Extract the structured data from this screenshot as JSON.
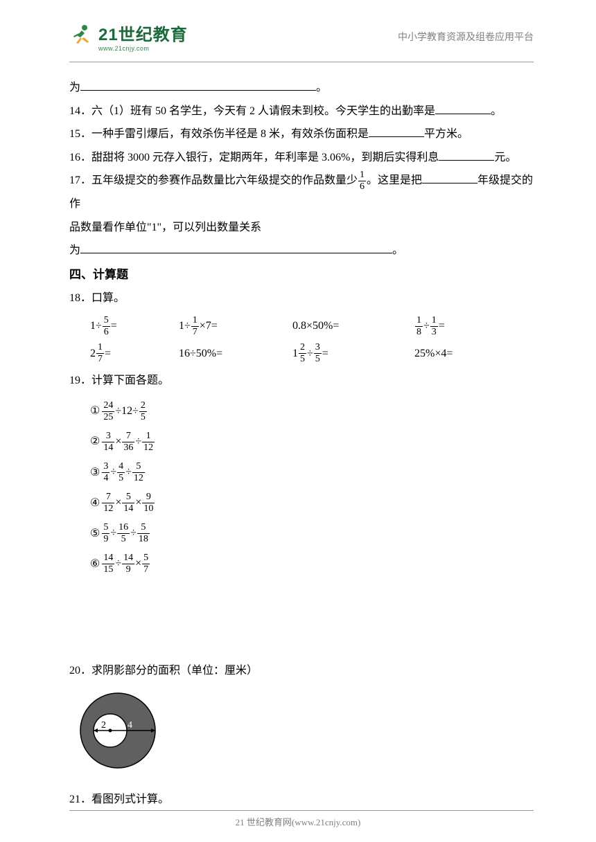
{
  "header": {
    "logo_main": "21世纪教育",
    "logo_sub": "www.21cnjy.com",
    "right_text": "中小学教育资源及组卷应用平台"
  },
  "q_prefix_wei": "为",
  "q_suffix_period": "。",
  "q14": {
    "num": "14．",
    "text_a": "六（1）班有 50 名学生，今天有 2 人请假未到校。今天学生的出勤率是",
    "text_b": "。"
  },
  "q15": {
    "num": "15．",
    "text_a": "一种手雷引爆后，有效杀伤半径是 8 米，有效杀伤面积是",
    "text_b": "平方米。"
  },
  "q16": {
    "num": "16．",
    "text_a": "甜甜将 3000 元存入银行，定期两年，年利率是 3.06%，到期后实得利息",
    "text_b": "元。"
  },
  "q17": {
    "num": "17．",
    "text_a": "五年级提交的参赛作品数量比六年级提交的作品数量少",
    "frac_num": "1",
    "frac_den": "6",
    "text_b": "。这里是把",
    "text_c": "年级提交的作",
    "text_d": "品数量看作单位\"1\"，可以列出数量关系",
    "text_e": "为",
    "text_f": "。"
  },
  "section4": "四、计算题",
  "q18": {
    "num": "18．",
    "title": "口算。",
    "row1": {
      "c1_a": "1÷",
      "c1_num": "5",
      "c1_den": "6",
      "c1_b": "=",
      "c2_a": "1÷",
      "c2_num": "1",
      "c2_den": "7",
      "c2_b": "×7=",
      "c3": "0.8×50%=",
      "c4_num1": "1",
      "c4_den1": "8",
      "c4_op": "÷",
      "c4_num2": "1",
      "c4_den2": "3",
      "c4_eq": "="
    },
    "row2": {
      "c1_a": "2",
      "c1_num": "1",
      "c1_den": "7",
      "c1_b": "=",
      "c2": "16÷50%=",
      "c3_a": "1",
      "c3_num1": "2",
      "c3_den1": "5",
      "c3_op": "÷",
      "c3_num2": "3",
      "c3_den2": "5",
      "c3_eq": "=",
      "c4": "25%×4="
    }
  },
  "q19": {
    "num": "19．",
    "title": "计算下面各题。",
    "items": [
      {
        "circ": "①",
        "n1": "24",
        "d1": "25",
        "op1": "÷12÷",
        "n2": "2",
        "d2": "5"
      },
      {
        "circ": "②",
        "n1": "3",
        "d1": "14",
        "op1": "×",
        "n2": "7",
        "d2": "36",
        "op2": "÷",
        "n3": "1",
        "d3": "12"
      },
      {
        "circ": "③",
        "n1": "3",
        "d1": "4",
        "op1": "÷",
        "n2": "4",
        "d2": "5",
        "op2": "÷",
        "n3": "5",
        "d3": "12"
      },
      {
        "circ": "④",
        "n1": "7",
        "d1": "12",
        "op1": "×",
        "n2": "5",
        "d2": "14",
        "op2": "×",
        "n3": "9",
        "d3": "10"
      },
      {
        "circ": "⑤",
        "n1": "5",
        "d1": "9",
        "op1": "÷",
        "n2": "16",
        "d2": "5",
        "op2": "÷",
        "n3": "5",
        "d3": "18"
      },
      {
        "circ": "⑥",
        "n1": "14",
        "d1": "15",
        "op1": "÷",
        "n2": "14",
        "d2": "9",
        "op2": "×",
        "n3": "5",
        "d3": "7"
      }
    ]
  },
  "q20": {
    "num": "20．",
    "title": "求阴影部分的面积（单位：厘米）",
    "inner_label": "2",
    "outer_label": "4",
    "colors": {
      "ring_fill": "#606060",
      "inner_fill": "#ffffff",
      "stroke": "#000000"
    }
  },
  "q21": {
    "num": "21．",
    "title": "看图列式计算。"
  },
  "footer": {
    "text": "21 世纪教育网(www.21cnjy.com)"
  },
  "blank_widths": {
    "q_long": "340px",
    "q14": "80px",
    "q15": "80px",
    "q16": "80px",
    "q17a": "80px",
    "q17b": "450px"
  },
  "logo_colors": {
    "body": "#2a8a4a",
    "leg": "#f5a623",
    "text": "#1a6b3a"
  }
}
